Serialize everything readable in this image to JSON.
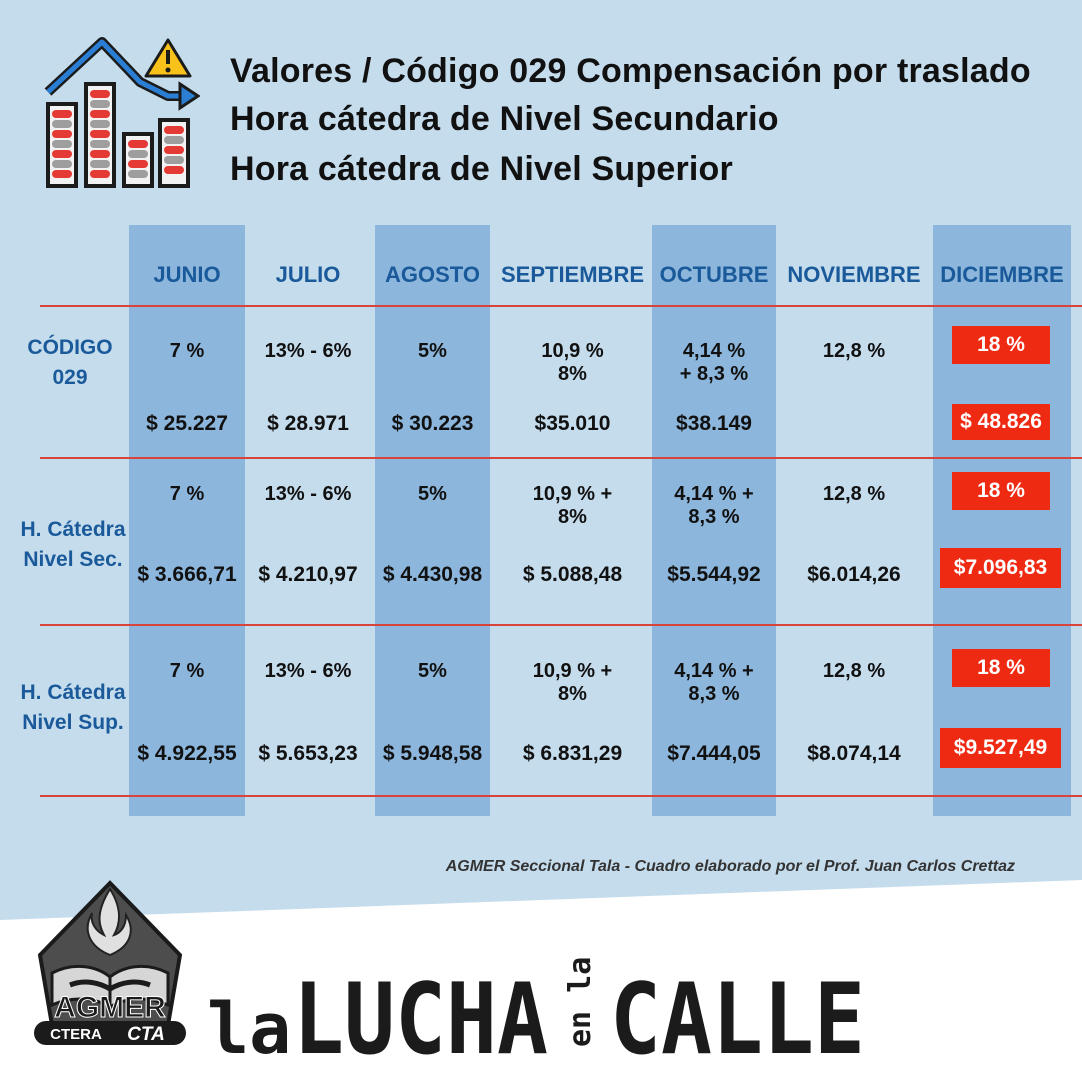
{
  "header": {
    "title_lines": [
      "Valores / Código 029 Compensación por traslado",
      "Hora cátedra de Nivel Secundario",
      "Hora cátedra de Nivel Superior"
    ],
    "icon": "falling-bar-chart-warning-icon"
  },
  "table": {
    "months": [
      "JUNIO",
      "JULIO",
      "AGOSTO",
      "SEPTIEMBRE",
      "OCTUBRE",
      "NOVIEMBRE",
      "DICIEMBRE"
    ],
    "rows": [
      {
        "label": [
          "CÓDIGO",
          "029"
        ],
        "percentages": [
          "7 %",
          "13% - 6%",
          "5%",
          "10,9 %\n8%",
          "4,14 %\n+ 8,3 %",
          "12,8 %",
          "18 %"
        ],
        "values": [
          "$ 25.227",
          "$ 28.971",
          "$ 30.223",
          "$35.010",
          "$38.149",
          "",
          "$ 48.826"
        ]
      },
      {
        "label": [
          "H. Cátedra",
          "Nivel Sec."
        ],
        "percentages": [
          "7 %",
          "13% - 6%",
          "5%",
          "10,9 % +\n8%",
          "4,14 % +\n8,3 %",
          "12,8 %",
          "18 %"
        ],
        "values": [
          "$ 3.666,71",
          "$ 4.210,97",
          "$ 4.430,98",
          "$ 5.088,48",
          "$5.544,92",
          "$6.014,26",
          "$7.096,83"
        ]
      },
      {
        "label": [
          "H. Cátedra",
          "Nivel Sup."
        ],
        "percentages": [
          "7 %",
          "13% - 6%",
          "5%",
          "10,9 % +\n8%",
          "4,14 % +\n8,3 %",
          "12,8 %",
          "18 %"
        ],
        "values": [
          "$ 4.922,55",
          "$ 5.653,23",
          "$ 5.948,58",
          "$ 6.831,29",
          "$7.444,05",
          "$8.074,14",
          "$9.527,49"
        ]
      }
    ]
  },
  "credit": "AGMER Seccional Tala - Cuadro elaborado por el Prof. Juan Carlos Crettaz",
  "footer": {
    "logo_text": "AGMER",
    "logo_sub_left": "CTERA",
    "logo_sub_right": "CTA",
    "slogan_parts": [
      "la",
      "LUCHA",
      "en la",
      "CALLE"
    ]
  },
  "colors": {
    "background": "#c5dcec",
    "column_shade": "#8cb6dc",
    "header_blue": "#1a5a9a",
    "separator_red": "#d8443a",
    "highlight_red": "#ef2a12"
  }
}
